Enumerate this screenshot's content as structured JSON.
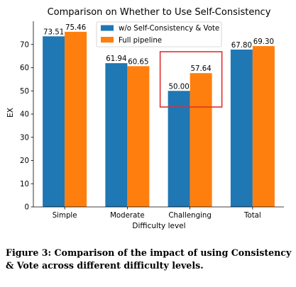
{
  "chart_data": {
    "type": "bar",
    "title": "Comparison on Whether to Use Self-Consistency",
    "xlabel": "Difficulty level",
    "ylabel": "EX",
    "categories": [
      "Simple",
      "Moderate",
      "Challenging",
      "Total"
    ],
    "series": [
      {
        "name": "w/o Self-Consistency & Vote",
        "color": "#1f77b4",
        "values": [
          73.51,
          61.94,
          50.0,
          67.8
        ],
        "labels": [
          "73.51",
          "61.94",
          "50.00",
          "67.80"
        ]
      },
      {
        "name": "Full pipeline",
        "color": "#ff7f0e",
        "values": [
          75.46,
          60.65,
          57.64,
          69.3
        ],
        "labels": [
          "75.46",
          "60.65",
          "57.64",
          "69.30"
        ]
      }
    ],
    "ylim": [
      0,
      80
    ],
    "yticks": [
      0,
      10,
      20,
      30,
      40,
      50,
      60,
      70
    ],
    "grid": false,
    "legend_position": "top-right",
    "highlight": {
      "category": "Challenging",
      "color": "#e03030"
    }
  },
  "caption": "Figure 3: Comparison of the impact of using Consistency & Vote across different difficulty levels."
}
